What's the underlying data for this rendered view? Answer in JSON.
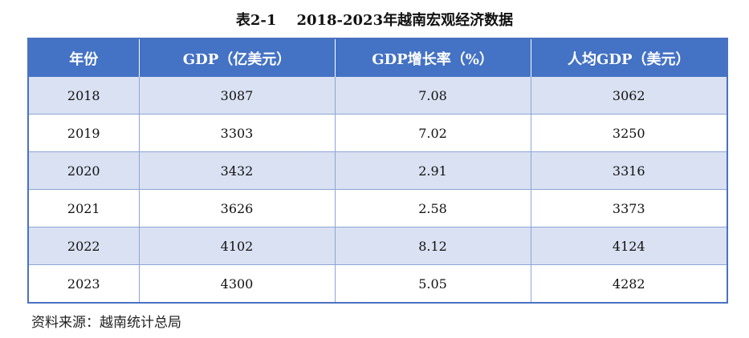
{
  "title": "表2-1    2018-2023年越南宏观经济数据",
  "table": {
    "headers": [
      "年份",
      "GDP（亿美元）",
      "GDP增长率（%）",
      "人均GDP（美元）"
    ],
    "rows": [
      [
        "2018",
        "3087",
        "7.08",
        "3062"
      ],
      [
        "2019",
        "3303",
        "7.02",
        "3250"
      ],
      [
        "2020",
        "3432",
        "2.91",
        "3316"
      ],
      [
        "2021",
        "3626",
        "2.58",
        "3373"
      ],
      [
        "2022",
        "4102",
        "8.12",
        "4124"
      ],
      [
        "2023",
        "4300",
        "5.05",
        "4282"
      ]
    ]
  },
  "source": "资料来源：越南统计总局",
  "colors": {
    "header_bg": "#4472c4",
    "band_bg": "#d9e1f2",
    "border": "#4a72c0"
  }
}
